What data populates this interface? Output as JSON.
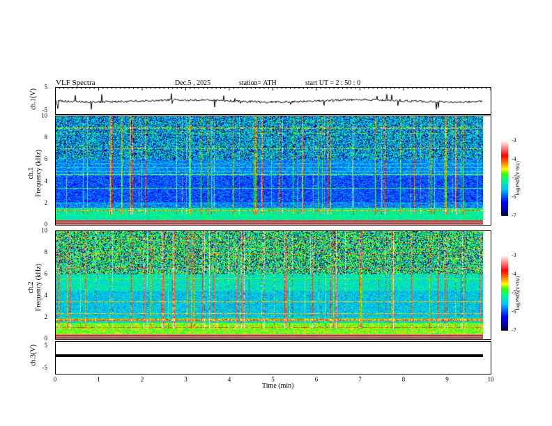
{
  "header": {
    "title": "VLF  Spectra",
    "date": "Dec.5  , 2025",
    "station": "station= ATH",
    "start": "start  UT  =   2  : 50 : 0"
  },
  "panels": {
    "ch1_wave": {
      "label": "ch.1(V)",
      "ticks": [
        "5",
        "-5"
      ]
    },
    "ch1_spec": {
      "label": "ch.1\nFrequency  (kHz)",
      "label1": "ch.1",
      "label2": "Frequency  (kHz)",
      "ticks": [
        "10",
        "8",
        "6",
        "4",
        "2",
        "0"
      ]
    },
    "ch2_spec": {
      "label1": "ch.2",
      "label2": "Frequency  (kHz)",
      "ticks": [
        "10",
        "8",
        "6",
        "4",
        "2",
        "0"
      ]
    },
    "ch3_wave": {
      "label": "ch.3(V)",
      "ticks": [
        "5",
        "-5"
      ]
    }
  },
  "colorbar": {
    "label": "log(PSD)(V²/Hz)",
    "ticks": [
      "-3",
      "-4",
      "-5",
      "-6",
      "-7"
    ]
  },
  "xaxis": {
    "label": "Time  (min)",
    "ticks": [
      "0",
      "1",
      "2",
      "3",
      "4",
      "5",
      "6",
      "7",
      "8",
      "9",
      "10"
    ]
  },
  "chart_data": {
    "type": "heatmap",
    "title": "VLF  Spectra",
    "xlabel": "Time  (min)",
    "xlim": [
      0,
      10
    ],
    "panels": [
      {
        "name": "ch.1(V)",
        "type": "line",
        "ylim": [
          -5,
          5
        ],
        "mean": 0
      },
      {
        "name": "ch.1 spectrogram",
        "ylabel": "Frequency (kHz)",
        "ylim": [
          0,
          10
        ],
        "zlim": [
          -7,
          -3
        ],
        "zlabel": "log(PSD)(V²/Hz)"
      },
      {
        "name": "ch.2 spectrogram",
        "ylabel": "Frequency (kHz)",
        "ylim": [
          0,
          10
        ],
        "zlim": [
          -7,
          -3
        ],
        "zlabel": "log(PSD)(V²/Hz)"
      },
      {
        "name": "ch.3(V)",
        "type": "line",
        "ylim": [
          -5,
          5
        ],
        "mean": -2.5
      }
    ],
    "data_end_min": 9.8
  }
}
